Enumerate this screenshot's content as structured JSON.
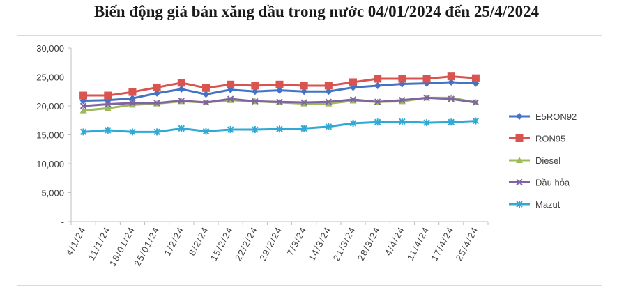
{
  "chart_data": {
    "type": "line",
    "title": "Biến động giá bán xăng dầu trong nước 04/01/2024 đến 25/4/2024",
    "xlabel": "",
    "ylabel": "",
    "ylim": [
      0,
      30000
    ],
    "yticks": [
      "-",
      "5,000",
      "10,000",
      "15,000",
      "20,000",
      "25,000",
      "30,000"
    ],
    "ytick_values": [
      0,
      5000,
      10000,
      15000,
      20000,
      25000,
      30000
    ],
    "grid": false,
    "legend_position": "right",
    "categories": [
      "4/1/24",
      "11/1/24",
      "18/01/24",
      "25/01/24",
      "1/2/24",
      "8/2/24",
      "15/2/24",
      "22/2/24",
      "29/2/24",
      "7/3/24",
      "14/3/24",
      "21/3/24",
      "28/3/24",
      "4/4/24",
      "11/4/24",
      "17/4/24",
      "25/4/24"
    ],
    "series": [
      {
        "name": "E5RON92",
        "color": "#4472C4",
        "marker": "diamond",
        "values": [
          20900,
          21000,
          21300,
          22200,
          22900,
          22000,
          22800,
          22500,
          22700,
          22500,
          22500,
          23200,
          23500,
          23800,
          23900,
          24100,
          23900
        ]
      },
      {
        "name": "RON95",
        "color": "#D9534F",
        "marker": "square",
        "values": [
          21800,
          21800,
          22400,
          23200,
          24000,
          23100,
          23700,
          23500,
          23700,
          23500,
          23500,
          24100,
          24700,
          24700,
          24700,
          25100,
          24800
        ]
      },
      {
        "name": "Diesel",
        "color": "#9BBB59",
        "marker": "triangle",
        "values": [
          19200,
          19600,
          20200,
          20400,
          20800,
          20600,
          21000,
          20800,
          20600,
          20400,
          20400,
          20900,
          20700,
          20800,
          21400,
          21400,
          20600
        ]
      },
      {
        "name": "Dầu hỏa",
        "color": "#8064A2",
        "marker": "x",
        "values": [
          20000,
          20300,
          20500,
          20500,
          20900,
          20600,
          21200,
          20800,
          20700,
          20600,
          20700,
          21100,
          20700,
          21000,
          21400,
          21200,
          20600
        ]
      },
      {
        "name": "Mazut",
        "color": "#31A9D6",
        "marker": "star",
        "values": [
          15500,
          15800,
          15500,
          15500,
          16100,
          15600,
          15900,
          15900,
          16000,
          16100,
          16400,
          17000,
          17200,
          17300,
          17100,
          17200,
          17400
        ]
      }
    ]
  }
}
